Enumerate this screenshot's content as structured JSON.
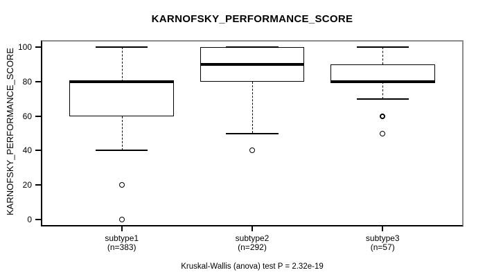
{
  "chart_data": {
    "type": "boxplot",
    "title": "KARNOFSKY_PERFORMANCE_SCORE",
    "ylabel": "KARNOFSKY_PERFORMANCE_SCORE",
    "xlabel": "",
    "ylim": [
      0,
      100
    ],
    "yticks": [
      0,
      20,
      40,
      60,
      80,
      100
    ],
    "grid": false,
    "legend": false,
    "annotation": "Kruskal-Wallis (anova) test P = 2.32e-19",
    "categories": [
      "subtype1",
      "subtype2",
      "subtype3"
    ],
    "groups": [
      {
        "label": "subtype1",
        "count_label": "(n=383)",
        "n": 383,
        "whisker_low": 40,
        "q1": 60,
        "median": 80,
        "q3": 80,
        "whisker_high": 100,
        "outliers": [
          {
            "value": 20,
            "bold": false
          },
          {
            "value": 0,
            "bold": false
          }
        ]
      },
      {
        "label": "subtype2",
        "count_label": "(n=292)",
        "n": 292,
        "whisker_low": 50,
        "q1": 80,
        "median": 90,
        "q3": 100,
        "whisker_high": 100,
        "outliers": [
          {
            "value": 40,
            "bold": false
          }
        ]
      },
      {
        "label": "subtype3",
        "count_label": "(n=57)",
        "n": 57,
        "whisker_low": 70,
        "q1": 80,
        "median": 80,
        "q3": 90,
        "whisker_high": 100,
        "outliers": [
          {
            "value": 60,
            "bold": true
          },
          {
            "value": 50,
            "bold": false
          }
        ]
      }
    ],
    "colors": {
      "line": "#000000",
      "box_fill": "#ffffff",
      "frame_shadow": "#8c8c8c",
      "background": "#ffffff"
    }
  }
}
